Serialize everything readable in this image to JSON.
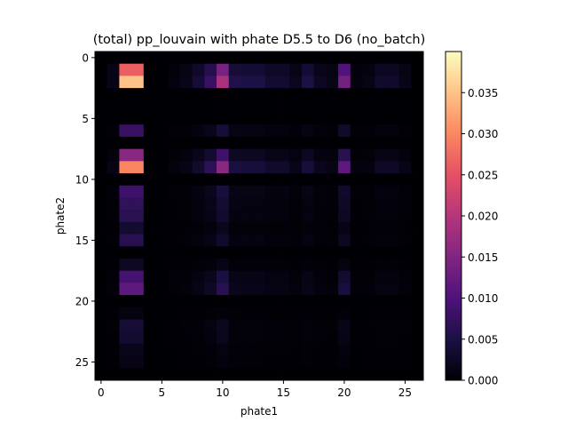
{
  "chart_data": {
    "type": "heatmap",
    "title": "(total) pp_louvain with phate D5.5 to D6 (no_batch)",
    "xlabel": "phate1",
    "ylabel": "phate2",
    "x_range": [
      -0.5,
      26.5
    ],
    "y_range": [
      26.5,
      -0.5
    ],
    "x_ticks": [
      "0",
      "5",
      "10",
      "15",
      "20",
      "25"
    ],
    "y_ticks": [
      "0",
      "5",
      "10",
      "15",
      "20",
      "25"
    ],
    "colorbar": {
      "colormap": "magma",
      "vmin": 0.0,
      "vmax": 0.04,
      "ticks": [
        "0.000",
        "0.005",
        "0.010",
        "0.015",
        "0.020",
        "0.025",
        "0.030",
        "0.035"
      ]
    },
    "grid_size": [
      27,
      27
    ],
    "row_weights": [
      0,
      0.75,
      1.0,
      0,
      0,
      0,
      0.22,
      0,
      0.45,
      0.85,
      0,
      0.24,
      0.2,
      0.18,
      0.1,
      0.17,
      0,
      0.07,
      0.26,
      0.33,
      0,
      0.03,
      0.11,
      0.1,
      0.05,
      0.04,
      0
    ],
    "col_weights": [
      0,
      0.04,
      0.9,
      0.9,
      0,
      0,
      0.02,
      0.04,
      0.1,
      0.2,
      0.48,
      0.14,
      0.13,
      0.13,
      0.09,
      0.09,
      0.05,
      0.13,
      0.06,
      0.04,
      0.35,
      0.02,
      0.03,
      0.08,
      0.08,
      0.04,
      0
    ],
    "scale": 0.039
  }
}
